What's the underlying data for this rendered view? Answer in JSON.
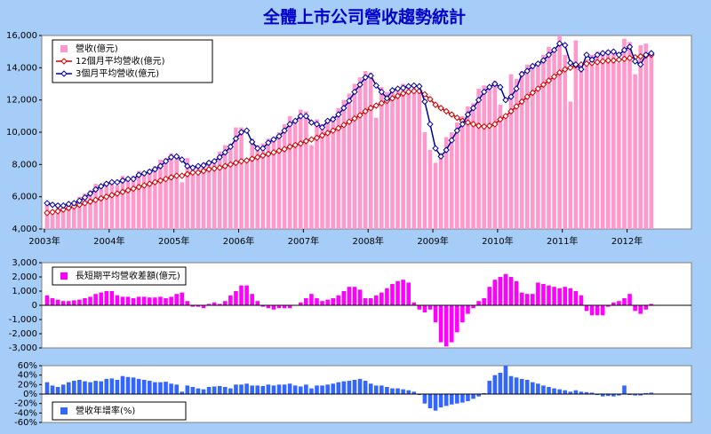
{
  "chart_data": [
    {
      "type": "combo",
      "title": "全體上市公司營收趨勢統計",
      "legend": "upper left",
      "categories": [
        "2003年",
        null,
        null,
        null,
        null,
        null,
        null,
        null,
        null,
        null,
        null,
        null,
        "2004年",
        null,
        null,
        null,
        null,
        null,
        null,
        null,
        null,
        null,
        null,
        null,
        "2005年",
        null,
        null,
        null,
        null,
        null,
        null,
        null,
        null,
        null,
        null,
        null,
        "2006年",
        null,
        null,
        null,
        null,
        null,
        null,
        null,
        null,
        null,
        null,
        null,
        "2007年",
        null,
        null,
        null,
        null,
        null,
        null,
        null,
        null,
        null,
        null,
        null,
        "2008年",
        null,
        null,
        null,
        null,
        null,
        null,
        null,
        null,
        null,
        null,
        null,
        "2009年",
        null,
        null,
        null,
        null,
        null,
        null,
        null,
        null,
        null,
        null,
        null,
        "2010年",
        null,
        null,
        null,
        null,
        null,
        null,
        null,
        null,
        null,
        null,
        null,
        "2011年",
        null,
        null,
        null,
        null,
        null,
        null,
        null,
        null,
        null,
        null,
        null,
        "2012年",
        null,
        null,
        null,
        null
      ],
      "ylim": [
        4000,
        16000
      ],
      "yticks": [
        {
          "value": 4000,
          "label": "4,000"
        },
        {
          "value": 6000,
          "label": "6,000"
        },
        {
          "value": 8000,
          "label": "8,000"
        },
        {
          "value": 10000,
          "label": "10,000"
        },
        {
          "value": 12000,
          "label": "12,000"
        },
        {
          "value": 14000,
          "label": "14,000"
        },
        {
          "value": 16000,
          "label": "16,000"
        }
      ],
      "series": [
        {
          "name": "營收(億元)",
          "type": "bar",
          "color": "#ff99cc",
          "values": [
            5500,
            5200,
            5600,
            5500,
            5500,
            5700,
            6000,
            6200,
            6400,
            6800,
            6700,
            6900,
            7000,
            6700,
            7300,
            7200,
            7300,
            7600,
            7500,
            7700,
            7900,
            8300,
            8400,
            8700,
            8400,
            6900,
            8400,
            7800,
            7900,
            8100,
            8200,
            8300,
            8800,
            9200,
            9300,
            10300,
            10300,
            8200,
            9600,
            9200,
            9300,
            9600,
            9700,
            10000,
            10500,
            11000,
            10600,
            11400,
            11300,
            9200,
            10800,
            10500,
            10800,
            11000,
            11500,
            12000,
            12400,
            13000,
            13400,
            13800,
            13700,
            10900,
            12800,
            12500,
            12500,
            12700,
            13000,
            12900,
            13000,
            12700,
            10000,
            8900,
            8100,
            8700,
            9700,
            10000,
            10600,
            11000,
            11600,
            11800,
            12700,
            12900,
            12900,
            13200,
            11700,
            11100,
            13600,
            13300,
            13800,
            14200,
            14200,
            14300,
            14800,
            15300,
            15200,
            16000,
            14800,
            11900,
            15700,
            14200,
            14500,
            14800,
            15000,
            14800,
            15100,
            15000,
            14300,
            15800,
            15600,
            13600,
            15400,
            15500,
            14700
          ]
        },
        {
          "name": "12個月平均營收(億元)",
          "type": "line",
          "color": "#cc0000",
          "values": [
            5000,
            5050,
            5100,
            5200,
            5300,
            5400,
            5500,
            5600,
            5700,
            5800,
            5900,
            6000,
            6100,
            6200,
            6300,
            6400,
            6500,
            6600,
            6700,
            6800,
            6900,
            7000,
            7100,
            7200,
            7300,
            7300,
            7400,
            7500,
            7500,
            7600,
            7700,
            7750,
            7800,
            7900,
            8000,
            8100,
            8200,
            8250,
            8350,
            8450,
            8550,
            8650,
            8750,
            8850,
            8950,
            9100,
            9200,
            9300,
            9450,
            9550,
            9650,
            9800,
            9950,
            10100,
            10250,
            10450,
            10650,
            10850,
            11050,
            11300,
            11500,
            11650,
            11800,
            11950,
            12100,
            12250,
            12400,
            12500,
            12550,
            12550,
            12350,
            12050,
            11700,
            11500,
            11300,
            11100,
            10900,
            10700,
            10600,
            10500,
            10400,
            10350,
            10400,
            10500,
            10800,
            11000,
            11300,
            11600,
            11900,
            12200,
            12450,
            12700,
            12950,
            13200,
            13450,
            13700,
            13900,
            14000,
            14150,
            14200,
            14250,
            14300,
            14350,
            14400,
            14450,
            14450,
            14500,
            14550,
            14600,
            14650,
            14700,
            14750,
            14800
          ]
        },
        {
          "name": "3個月平均營收(億元)",
          "type": "line",
          "color": "#000099",
          "values": [
            5600,
            5500,
            5450,
            5450,
            5550,
            5600,
            5750,
            5950,
            6200,
            6450,
            6650,
            6800,
            6900,
            6900,
            7000,
            7100,
            7100,
            7350,
            7450,
            7550,
            7700,
            7900,
            8200,
            8450,
            8500,
            8300,
            7900,
            7800,
            7900,
            7950,
            8100,
            8200,
            8450,
            8750,
            9100,
            9600,
            10000,
            10100,
            9400,
            9000,
            9000,
            9350,
            9550,
            9750,
            10100,
            10500,
            10700,
            11000,
            11000,
            10600,
            10500,
            10300,
            10700,
            10800,
            11100,
            11500,
            11950,
            12500,
            12950,
            13400,
            13500,
            12900,
            12500,
            12100,
            12600,
            12700,
            12750,
            12850,
            12900,
            12850,
            11900,
            10500,
            9000,
            8500,
            8900,
            9500,
            10100,
            10500,
            11100,
            11500,
            12000,
            12500,
            12800,
            13000,
            12800,
            12000,
            12200,
            12700,
            13600,
            13800,
            14100,
            14250,
            14450,
            14800,
            15100,
            15500,
            15400,
            14300,
            14200,
            13900,
            14800,
            14500,
            14800,
            14900,
            14950,
            15000,
            14800,
            15100,
            15300,
            14400,
            14200,
            14800,
            14900
          ]
        }
      ]
    },
    {
      "type": "bar",
      "legend": "upper left",
      "ylim": [
        -3000,
        3000
      ],
      "yticks": [
        {
          "value": -3000,
          "label": "-3,000"
        },
        {
          "value": -2000,
          "label": "-2,000"
        },
        {
          "value": -1000,
          "label": "-1,000"
        },
        0,
        {
          "value": 1000,
          "label": "1,000"
        },
        {
          "value": 2000,
          "label": "2,000"
        },
        {
          "value": 3000,
          "label": "3,000"
        }
      ],
      "series": [
        {
          "name": "長短期平均營收差額(億元)",
          "color": "#ff00ff",
          "values": [
            700,
            500,
            400,
            300,
            300,
            350,
            400,
            500,
            600,
            800,
            900,
            1000,
            1000,
            700,
            600,
            600,
            500,
            600,
            600,
            550,
            550,
            600,
            500,
            600,
            800,
            900,
            300,
            -100,
            -100,
            -200,
            100,
            200,
            100,
            300,
            700,
            1000,
            1400,
            1400,
            800,
            300,
            -100,
            -200,
            -300,
            -200,
            -200,
            -200,
            0,
            200,
            500,
            800,
            500,
            300,
            400,
            500,
            700,
            1000,
            1300,
            1300,
            1100,
            500,
            500,
            700,
            900,
            1200,
            1500,
            1700,
            1800,
            1600,
            200,
            -300,
            -500,
            -300,
            -1200,
            -2600,
            -2900,
            -2600,
            -1900,
            -1200,
            -600,
            -200,
            300,
            500,
            1300,
            1800,
            2000,
            2200,
            2000,
            1700,
            900,
            800,
            800,
            1600,
            1500,
            1400,
            1300,
            1200,
            1300,
            1200,
            1000,
            700,
            -400,
            -700,
            -700,
            -700,
            -100,
            200,
            300,
            500,
            800,
            -400,
            -600,
            -300,
            100
          ]
        }
      ]
    },
    {
      "type": "bar",
      "legend": "lower left",
      "ylim": [
        -60,
        60
      ],
      "yticks": [
        {
          "value": -60,
          "label": "-60%"
        },
        {
          "value": -40,
          "label": "-40%"
        },
        {
          "value": -20,
          "label": "-20%"
        },
        {
          "value": 0,
          "label": "0%"
        },
        {
          "value": 20,
          "label": "20%"
        },
        {
          "value": 40,
          "label": "40%"
        },
        {
          "value": 60,
          "label": "60%"
        }
      ],
      "series": [
        {
          "name": "營收年增率(%)",
          "color": "#3366ff",
          "values": [
            25,
            18,
            15,
            20,
            25,
            28,
            30,
            27,
            25,
            28,
            27,
            32,
            33,
            30,
            38,
            36,
            35,
            32,
            30,
            28,
            25,
            25,
            26,
            22,
            20,
            5,
            18,
            15,
            12,
            10,
            15,
            16,
            17,
            15,
            12,
            20,
            20,
            22,
            18,
            18,
            17,
            20,
            18,
            20,
            20,
            22,
            18,
            16,
            20,
            12,
            18,
            18,
            20,
            22,
            25,
            27,
            28,
            30,
            32,
            28,
            22,
            18,
            18,
            15,
            12,
            12,
            10,
            8,
            5,
            -2,
            -20,
            -30,
            -35,
            -28,
            -25,
            -22,
            -20,
            -18,
            -15,
            -10,
            -5,
            2,
            28,
            40,
            45,
            60,
            38,
            35,
            32,
            30,
            25,
            22,
            18,
            15,
            12,
            10,
            8,
            5,
            8,
            5,
            4,
            3,
            -2,
            -5,
            -4,
            -5,
            -3,
            18,
            -2,
            -3,
            -3,
            2,
            3
          ]
        }
      ]
    }
  ]
}
